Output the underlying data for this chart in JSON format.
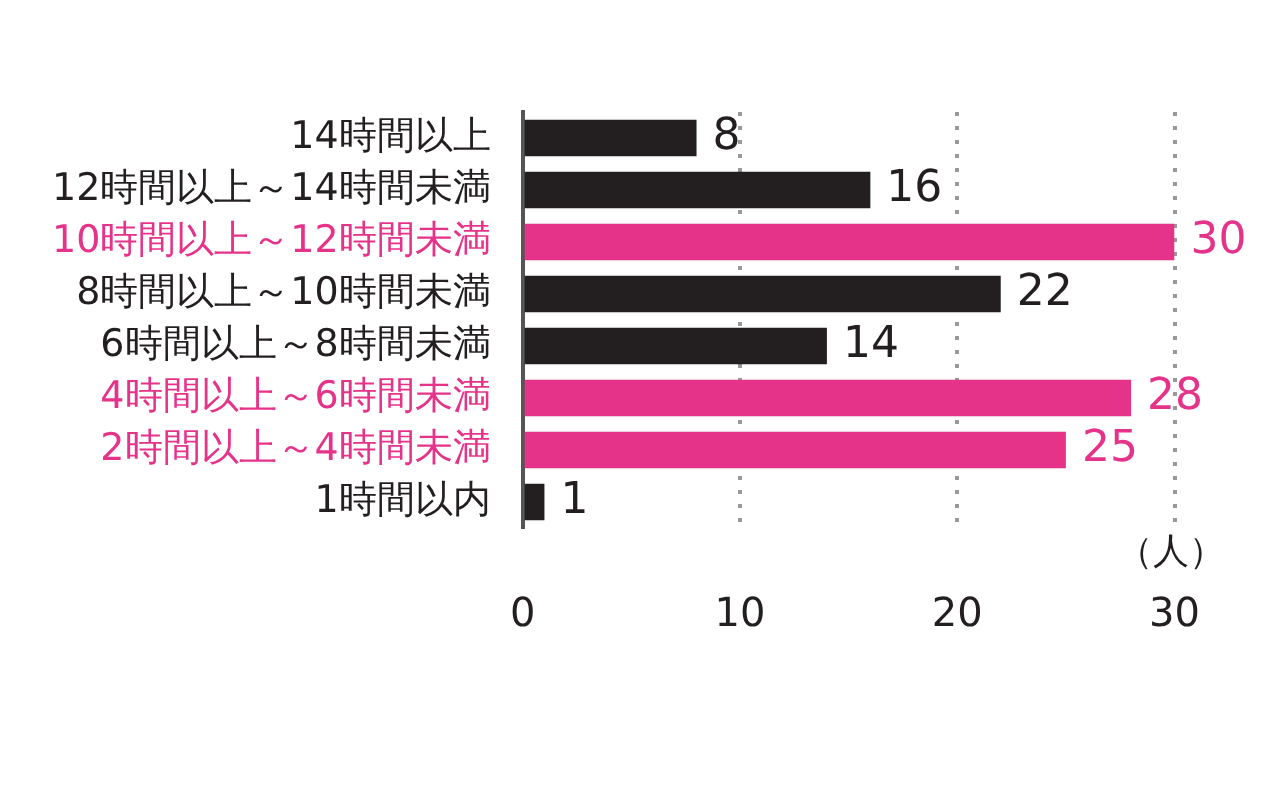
{
  "chart_data": {
    "type": "bar",
    "orientation": "horizontal",
    "xlabel": "（人）",
    "categories": [
      "14時間以上",
      "12時間以上～14時間未満",
      "10時間以上～12時間未満",
      "8時間以上～10時間未満",
      "6時間以上～8時間未満",
      "4時間以上～6時間未満",
      "2時間以上～4時間未満",
      "1時間以内"
    ],
    "values": [
      8,
      16,
      30,
      22,
      14,
      28,
      25,
      1
    ],
    "colors": [
      "#231f20",
      "#231f20",
      "#e6338a",
      "#231f20",
      "#231f20",
      "#e6338a",
      "#e6338a",
      "#231f20"
    ],
    "xlim": [
      0,
      30
    ],
    "xticks": [
      0,
      10,
      20,
      30
    ],
    "grid": "x",
    "data_labels": true,
    "legend": false
  }
}
